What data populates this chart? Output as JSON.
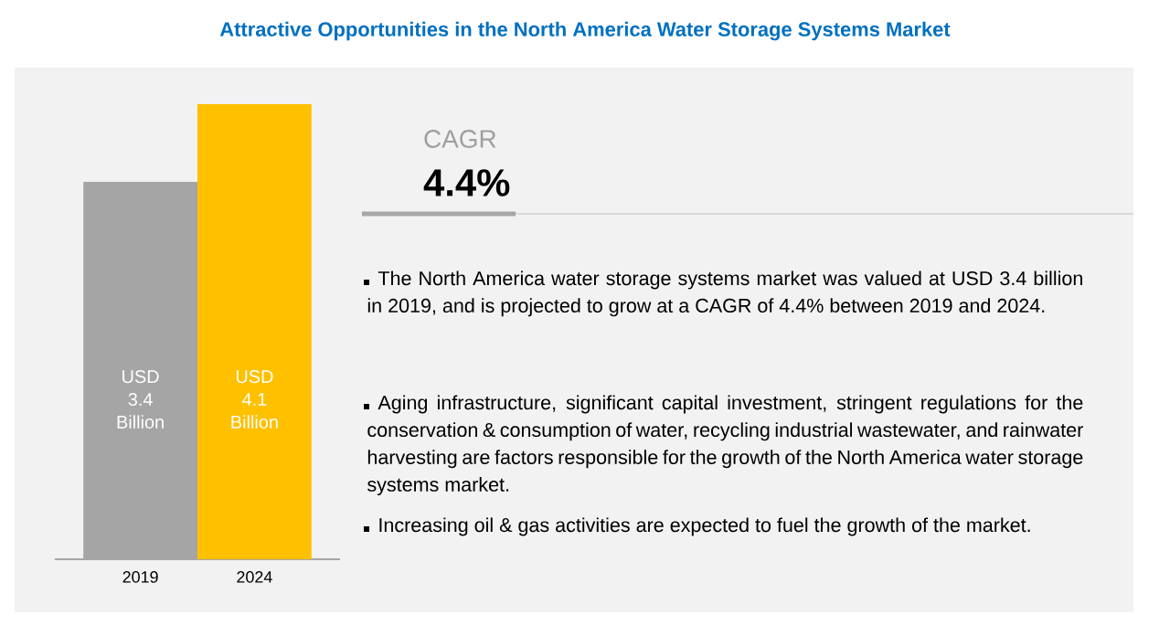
{
  "chart_data": [
    {
      "type": "bar",
      "title": "Attractive Opportunities in the North America Water Storage Systems Market",
      "categories": [
        "2019",
        "2024"
      ],
      "values": [
        3.4,
        4.1
      ],
      "colors": [
        "#a5a5a5",
        "#ffc000"
      ],
      "value_labels": [
        "USD 3.4 Billion",
        "USD 4.1 Billion"
      ]
    },
    {
      "type": "other",
      "title": "CAGR",
      "annotations": [
        "4.4%",
        "The North America water storage systems market was valued at USD 3.4 billion in 2019, and is projected to grow at a CAGR of 4.4% between 2019 and 2024.",
        "Aging infrastructure, significant capital investment, stringent regulations for the conservation & consumption of water, recycling industrial wastewater, and rainwater harvesting are factors responsible for the growth of the North America water storage systems market.",
        "Increasing oil & gas activities are expected to fuel the growth of the market."
      ]
    }
  ]
}
